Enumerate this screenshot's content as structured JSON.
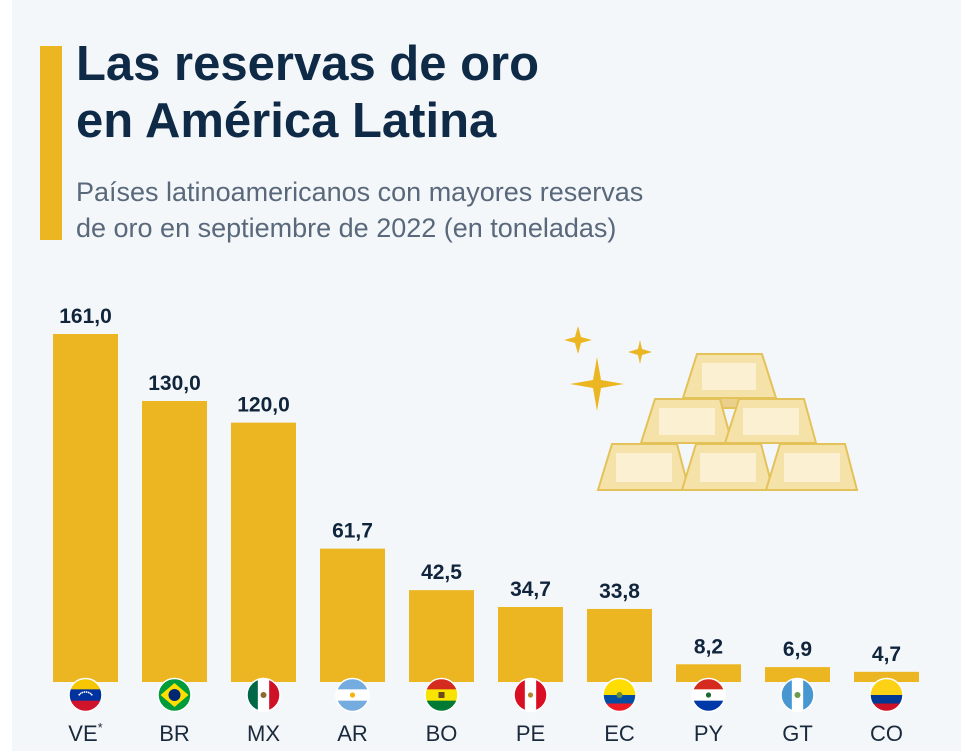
{
  "header": {
    "title_line1": "Las reservas de oro",
    "title_line2": "en América Latina",
    "subtitle_line1": "Países latinoamericanos con mayores reservas",
    "subtitle_line2": "de oro en septiembre de 2022 (en toneladas)"
  },
  "colors": {
    "accent": "#ecb622",
    "bar": "#ecb622",
    "title": "#0f2a46",
    "subtitle": "#59687a",
    "background": "#f4f7fa"
  },
  "decoration": {
    "icon": "gold-bars-stack-icon"
  },
  "chart_data": {
    "type": "bar",
    "title": "Las reservas de oro en América Latina",
    "subtitle": "Países latinoamericanos con mayores reservas de oro en septiembre de 2022 (en toneladas)",
    "xlabel": "",
    "ylabel": "",
    "ylim": [
      0,
      161
    ],
    "grid": false,
    "legend": "none",
    "categories": [
      "VE",
      "BR",
      "MX",
      "AR",
      "BO",
      "PE",
      "EC",
      "PY",
      "GT",
      "CO"
    ],
    "category_suffix": [
      "*",
      "",
      "",
      "",
      "",
      "",
      "",
      "",
      "",
      ""
    ],
    "values": [
      161.0,
      130.0,
      120.0,
      61.7,
      42.5,
      34.7,
      33.8,
      8.2,
      6.9,
      4.7
    ],
    "value_labels": [
      "161,0",
      "130,0",
      "120,0",
      "61,7",
      "42,5",
      "34,7",
      "33,8",
      "8,2",
      "6,9",
      "4,7"
    ],
    "flags": [
      "venezuela-flag-icon",
      "brazil-flag-icon",
      "mexico-flag-icon",
      "argentina-flag-icon",
      "bolivia-flag-icon",
      "peru-flag-icon",
      "ecuador-flag-icon",
      "paraguay-flag-icon",
      "guatemala-flag-icon",
      "colombia-flag-icon"
    ]
  }
}
